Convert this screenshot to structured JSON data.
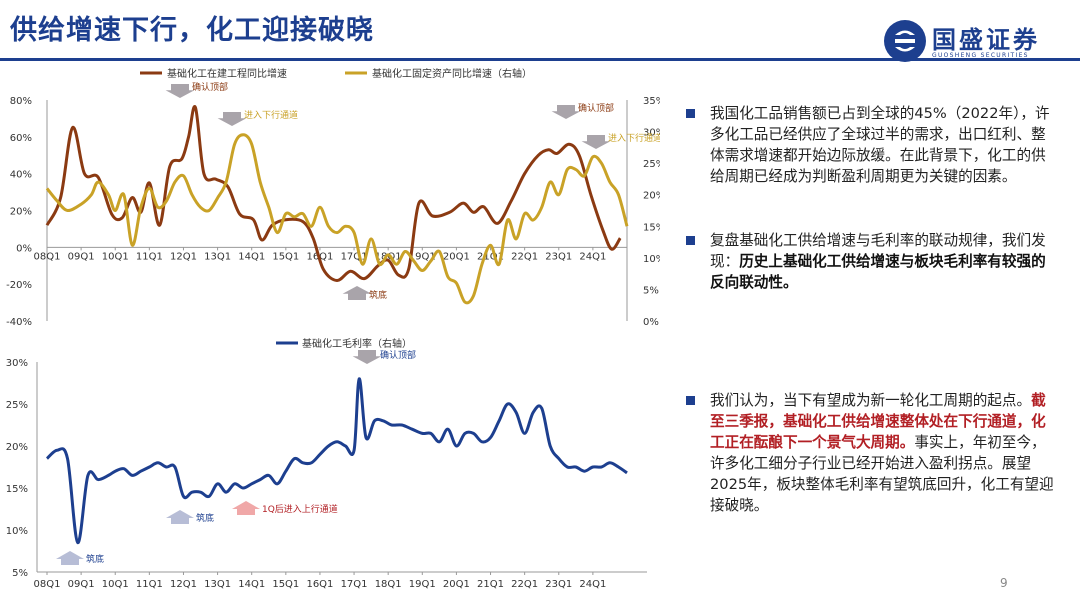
{
  "header": {
    "title": "供给增速下行，化工迎接破晓",
    "logo_name": "国盛证券",
    "logo_sub": "GUOSHENG SECURITIES"
  },
  "bullets": [
    {
      "text": "我国化工品销售额已占到全球的45%（2022年），许多化工品已经供应了全球过半的需求，出口红利、整体需求增速都开始边际放缓。在此背景下，化工的供给周期已经成为判断盈利周期更为关键的因素。"
    },
    {
      "text": "复盘基础化工供给增速与毛利率的联动规律，我们发现：",
      "bold": "历史上基础化工供给增速与板块毛利率有较强的反向联动性。"
    },
    {
      "text": "我们认为，当下有望成为新一轮化工周期的起点。",
      "red": "截至三季报，基础化工供给增速整体处在下行通道，化工正在酝酿下一个景气大周期。",
      "text2": "事实上，年初至今，许多化工细分子行业已经开始进入盈利拐点。展望2025年，板块整体毛利率有望筑底回升，化工有望迎接破晓。"
    }
  ],
  "page_number": "9",
  "chart_data": [
    {
      "type": "line",
      "x_ticks": [
        "08Q1",
        "09Q1",
        "10Q1",
        "11Q1",
        "12Q1",
        "13Q1",
        "14Q1",
        "15Q1",
        "16Q1",
        "17Q1",
        "18Q1",
        "19Q1",
        "20Q1",
        "21Q1",
        "22Q1",
        "23Q1",
        "24Q1"
      ],
      "y_left_ticks": [
        "80%",
        "60%",
        "40%",
        "20%",
        "0%",
        "-20%",
        "-40%"
      ],
      "y_right_ticks": [
        "35%",
        "30%",
        "25%",
        "20%",
        "15%",
        "10%",
        "5%",
        "0%"
      ],
      "ylim_left": [
        -40,
        80
      ],
      "ylim_right": [
        0,
        35
      ],
      "series": [
        {
          "name": "基础化工在建工程同比增速",
          "axis": "left",
          "color": "#8b3a12",
          "points": [
            [
              2008.0,
              12
            ],
            [
              2008.4,
              27
            ],
            [
              2008.75,
              65
            ],
            [
              2009.1,
              40
            ],
            [
              2009.5,
              38
            ],
            [
              2009.9,
              18
            ],
            [
              2010.2,
              16
            ],
            [
              2010.5,
              27
            ],
            [
              2010.75,
              19
            ],
            [
              2011.0,
              35
            ],
            [
              2011.3,
              12
            ],
            [
              2011.6,
              44
            ],
            [
              2011.95,
              48
            ],
            [
              2012.15,
              60
            ],
            [
              2012.35,
              76
            ],
            [
              2012.6,
              40
            ],
            [
              2012.95,
              37
            ],
            [
              2013.3,
              33
            ],
            [
              2013.65,
              18
            ],
            [
              2014.05,
              15
            ],
            [
              2014.3,
              4
            ],
            [
              2014.6,
              12
            ],
            [
              2015.0,
              15
            ],
            [
              2015.5,
              14
            ],
            [
              2015.8,
              5
            ],
            [
              2016.1,
              -12
            ],
            [
              2016.5,
              -18
            ],
            [
              2016.9,
              -13
            ],
            [
              2017.3,
              -17
            ],
            [
              2017.7,
              -10
            ],
            [
              2018.0,
              -7
            ],
            [
              2018.3,
              -15
            ],
            [
              2018.6,
              -12
            ],
            [
              2018.9,
              24
            ],
            [
              2019.3,
              17
            ],
            [
              2019.8,
              19
            ],
            [
              2020.2,
              24
            ],
            [
              2020.5,
              19
            ],
            [
              2020.8,
              22
            ],
            [
              2021.2,
              13
            ],
            [
              2021.6,
              25
            ],
            [
              2022.0,
              40
            ],
            [
              2022.4,
              50
            ],
            [
              2022.7,
              53
            ],
            [
              2022.95,
              51
            ],
            [
              2023.3,
              56
            ],
            [
              2023.6,
              50
            ],
            [
              2023.95,
              28
            ],
            [
              2024.3,
              9
            ],
            [
              2024.55,
              -1
            ],
            [
              2024.8,
              5
            ]
          ]
        },
        {
          "name": "基础化工固定资产同比增速（右轴）",
          "axis": "right",
          "color": "#c9a227",
          "points": [
            [
              2008.0,
              21
            ],
            [
              2008.3,
              19
            ],
            [
              2008.6,
              17.5
            ],
            [
              2009.0,
              18.5
            ],
            [
              2009.3,
              20
            ],
            [
              2009.5,
              22
            ],
            [
              2009.8,
              20
            ],
            [
              2010.0,
              17.5
            ],
            [
              2010.25,
              20
            ],
            [
              2010.5,
              12
            ],
            [
              2010.75,
              18
            ],
            [
              2011.0,
              21
            ],
            [
              2011.25,
              18
            ],
            [
              2011.5,
              19
            ],
            [
              2011.75,
              22
            ],
            [
              2012.0,
              23
            ],
            [
              2012.25,
              20
            ],
            [
              2012.5,
              18
            ],
            [
              2012.75,
              17.5
            ],
            [
              2013.0,
              19.5
            ],
            [
              2013.25,
              22
            ],
            [
              2013.5,
              28
            ],
            [
              2013.75,
              29.5
            ],
            [
              2014.0,
              28
            ],
            [
              2014.25,
              22
            ],
            [
              2014.5,
              18
            ],
            [
              2014.75,
              14
            ],
            [
              2015.0,
              17
            ],
            [
              2015.25,
              16.5
            ],
            [
              2015.5,
              17
            ],
            [
              2015.75,
              15
            ],
            [
              2016.0,
              18
            ],
            [
              2016.25,
              15
            ],
            [
              2016.5,
              14
            ],
            [
              2016.75,
              15
            ],
            [
              2017.0,
              14
            ],
            [
              2017.25,
              9
            ],
            [
              2017.5,
              13
            ],
            [
              2017.75,
              9
            ],
            [
              2018.0,
              10.5
            ],
            [
              2018.25,
              9
            ],
            [
              2018.5,
              11
            ],
            [
              2018.75,
              9.5
            ],
            [
              2019.0,
              8
            ],
            [
              2019.25,
              9.5
            ],
            [
              2019.5,
              11
            ],
            [
              2019.75,
              7
            ],
            [
              2020.0,
              6
            ],
            [
              2020.25,
              3
            ],
            [
              2020.5,
              4
            ],
            [
              2020.75,
              9
            ],
            [
              2021.0,
              12
            ],
            [
              2021.25,
              9
            ],
            [
              2021.5,
              16
            ],
            [
              2021.75,
              13
            ],
            [
              2022.0,
              17
            ],
            [
              2022.25,
              16
            ],
            [
              2022.5,
              18
            ],
            [
              2022.75,
              22
            ],
            [
              2023.0,
              20
            ],
            [
              2023.25,
              24
            ],
            [
              2023.5,
              24
            ],
            [
              2023.75,
              23
            ],
            [
              2024.0,
              26
            ],
            [
              2024.25,
              25
            ],
            [
              2024.5,
              22
            ],
            [
              2024.75,
              20
            ],
            [
              2025.0,
              15
            ]
          ]
        }
      ],
      "annotations": [
        {
          "text": "确认顶部",
          "color": "#8b3a12",
          "arrow": "down"
        },
        {
          "text": "进入下行通道",
          "color": "#c9a227",
          "arrow": "down"
        },
        {
          "text": "确认顶部",
          "color": "#8b3a12",
          "arrow": "down"
        },
        {
          "text": "进入下行通道",
          "color": "#c9a227",
          "arrow": "down"
        },
        {
          "text": "筑底",
          "color": "#8b3a12",
          "arrow": "up"
        }
      ]
    },
    {
      "type": "line",
      "x_ticks": [
        "08Q1",
        "09Q1",
        "10Q1",
        "11Q1",
        "12Q1",
        "13Q1",
        "14Q1",
        "15Q1",
        "16Q1",
        "17Q1",
        "18Q1",
        "19Q1",
        "20Q1",
        "21Q1",
        "22Q1",
        "23Q1",
        "24Q1"
      ],
      "y_ticks": [
        "30%",
        "25%",
        "20%",
        "15%",
        "10%",
        "5%"
      ],
      "ylim": [
        5,
        30
      ],
      "series": [
        {
          "name": "基础化工毛利率（右轴）",
          "axis": "right",
          "color": "#1d3f8f",
          "points": [
            [
              2008.0,
              18.5
            ],
            [
              2008.3,
              19.5
            ],
            [
              2008.6,
              18.5
            ],
            [
              2008.9,
              8.5
            ],
            [
              2009.2,
              16.5
            ],
            [
              2009.5,
              16
            ],
            [
              2009.8,
              16.5
            ],
            [
              2010.0,
              17
            ],
            [
              2010.25,
              17.3
            ],
            [
              2010.5,
              16.5
            ],
            [
              2010.75,
              17
            ],
            [
              2011.0,
              17.5
            ],
            [
              2011.25,
              18
            ],
            [
              2011.5,
              17.5
            ],
            [
              2011.75,
              17.5
            ],
            [
              2012.0,
              14
            ],
            [
              2012.25,
              14.5
            ],
            [
              2012.5,
              14.5
            ],
            [
              2012.75,
              14
            ],
            [
              2013.0,
              15.5
            ],
            [
              2013.25,
              14.5
            ],
            [
              2013.5,
              15.5
            ],
            [
              2013.75,
              15
            ],
            [
              2014.0,
              15.5
            ],
            [
              2014.25,
              16
            ],
            [
              2014.5,
              16.5
            ],
            [
              2014.75,
              15.5
            ],
            [
              2015.0,
              17
            ],
            [
              2015.25,
              18.5
            ],
            [
              2015.5,
              18
            ],
            [
              2015.75,
              18
            ],
            [
              2016.0,
              19
            ],
            [
              2016.25,
              20
            ],
            [
              2016.5,
              20.5
            ],
            [
              2016.75,
              20
            ],
            [
              2017.0,
              19.5
            ],
            [
              2017.15,
              28
            ],
            [
              2017.35,
              21
            ],
            [
              2017.6,
              23
            ],
            [
              2017.85,
              23
            ],
            [
              2018.1,
              22.5
            ],
            [
              2018.4,
              22.5
            ],
            [
              2018.7,
              22
            ],
            [
              2019.0,
              21.5
            ],
            [
              2019.25,
              21.5
            ],
            [
              2019.5,
              20.5
            ],
            [
              2019.75,
              22
            ],
            [
              2020.0,
              20
            ],
            [
              2020.25,
              21.5
            ],
            [
              2020.5,
              21.5
            ],
            [
              2020.75,
              20.5
            ],
            [
              2021.0,
              21
            ],
            [
              2021.25,
              23
            ],
            [
              2021.5,
              25
            ],
            [
              2021.75,
              24
            ],
            [
              2022.0,
              21.5
            ],
            [
              2022.25,
              24
            ],
            [
              2022.5,
              24.5
            ],
            [
              2022.75,
              20
            ],
            [
              2023.0,
              18.5
            ],
            [
              2023.25,
              17.5
            ],
            [
              2023.5,
              17.5
            ],
            [
              2023.75,
              17
            ],
            [
              2024.0,
              17.5
            ],
            [
              2024.25,
              17.5
            ],
            [
              2024.5,
              18
            ],
            [
              2024.75,
              17.5
            ],
            [
              2025.0,
              16.8
            ]
          ]
        }
      ],
      "annotations": [
        {
          "text": "确认顶部",
          "color": "#1d3f8f",
          "arrow": "down"
        },
        {
          "text": "筑底",
          "color": "#1d3f8f",
          "arrow": "up"
        },
        {
          "text": "1Q后进入上行通道",
          "color": "#b21f24",
          "arrow": "up"
        },
        {
          "text": "筑底",
          "color": "#1d3f8f",
          "arrow": "up"
        }
      ]
    }
  ]
}
